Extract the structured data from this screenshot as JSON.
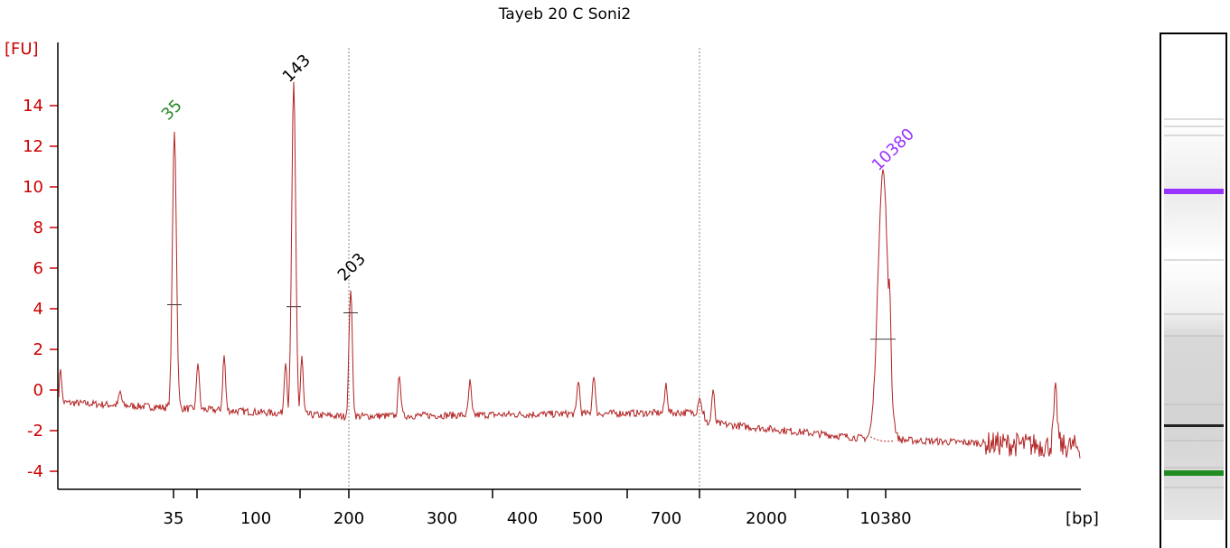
{
  "chart_data": {
    "type": "line",
    "title": "Tayeb 20 C Soni2",
    "ylabel": "[FU]",
    "xlabel": "[bp]",
    "ylim": [
      -5,
      17
    ],
    "y_ticks": [
      -4,
      -2,
      0,
      2,
      4,
      6,
      8,
      10,
      12,
      14
    ],
    "x_ticks": [
      "35",
      "100",
      "200",
      "300",
      "400",
      "500",
      "700",
      "2000",
      "10380"
    ],
    "peaks": [
      {
        "label": "35",
        "value": 12.8,
        "color": "#228b22"
      },
      {
        "label": "143",
        "value": 15.0,
        "color": "#000000"
      },
      {
        "label": "203",
        "value": 5.0,
        "color": "#000000"
      },
      {
        "label": "10380",
        "value": 10.8,
        "color": "#9933ff"
      }
    ],
    "series_color": "#b22222",
    "axis_color": "#cc0000",
    "grid": false
  },
  "gel": {
    "bands": [
      {
        "label": "10380",
        "color": "#9933ff"
      },
      {
        "label": "35",
        "color": "#228b22"
      }
    ]
  }
}
